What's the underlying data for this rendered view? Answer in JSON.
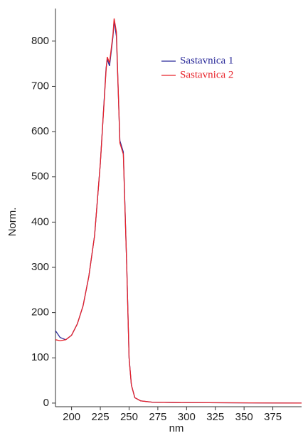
{
  "chart_data": {
    "type": "line",
    "x_label": "nm",
    "y_label": "Norm.",
    "x": [
      186,
      190,
      195,
      200,
      205,
      210,
      215,
      220,
      225,
      230,
      231,
      233,
      236,
      237,
      239,
      242,
      245,
      248,
      250,
      252,
      255,
      260,
      270,
      300,
      400
    ],
    "series": [
      {
        "name": "Sastavnica 1",
        "color": "#2b2b9a",
        "values": [
          160,
          145,
          140,
          150,
          175,
          215,
          280,
          370,
          530,
          740,
          760,
          745,
          810,
          845,
          810,
          580,
          555,
          300,
          100,
          40,
          12,
          5,
          2,
          1,
          0
        ]
      },
      {
        "name": "Sastavnica 2",
        "color": "#e8232a",
        "values": [
          140,
          138,
          140,
          150,
          175,
          215,
          280,
          370,
          530,
          735,
          765,
          752,
          815,
          850,
          820,
          575,
          550,
          300,
          100,
          40,
          12,
          5,
          2,
          1,
          0
        ]
      }
    ],
    "xlim": [
      186,
      400
    ],
    "ylim": [
      -8,
      872
    ],
    "xticks": [
      200,
      225,
      250,
      275,
      300,
      325,
      350,
      375
    ],
    "yticks": [
      0,
      100,
      200,
      300,
      400,
      500,
      600,
      700,
      800
    ],
    "grid": false,
    "legend": "upper right"
  }
}
